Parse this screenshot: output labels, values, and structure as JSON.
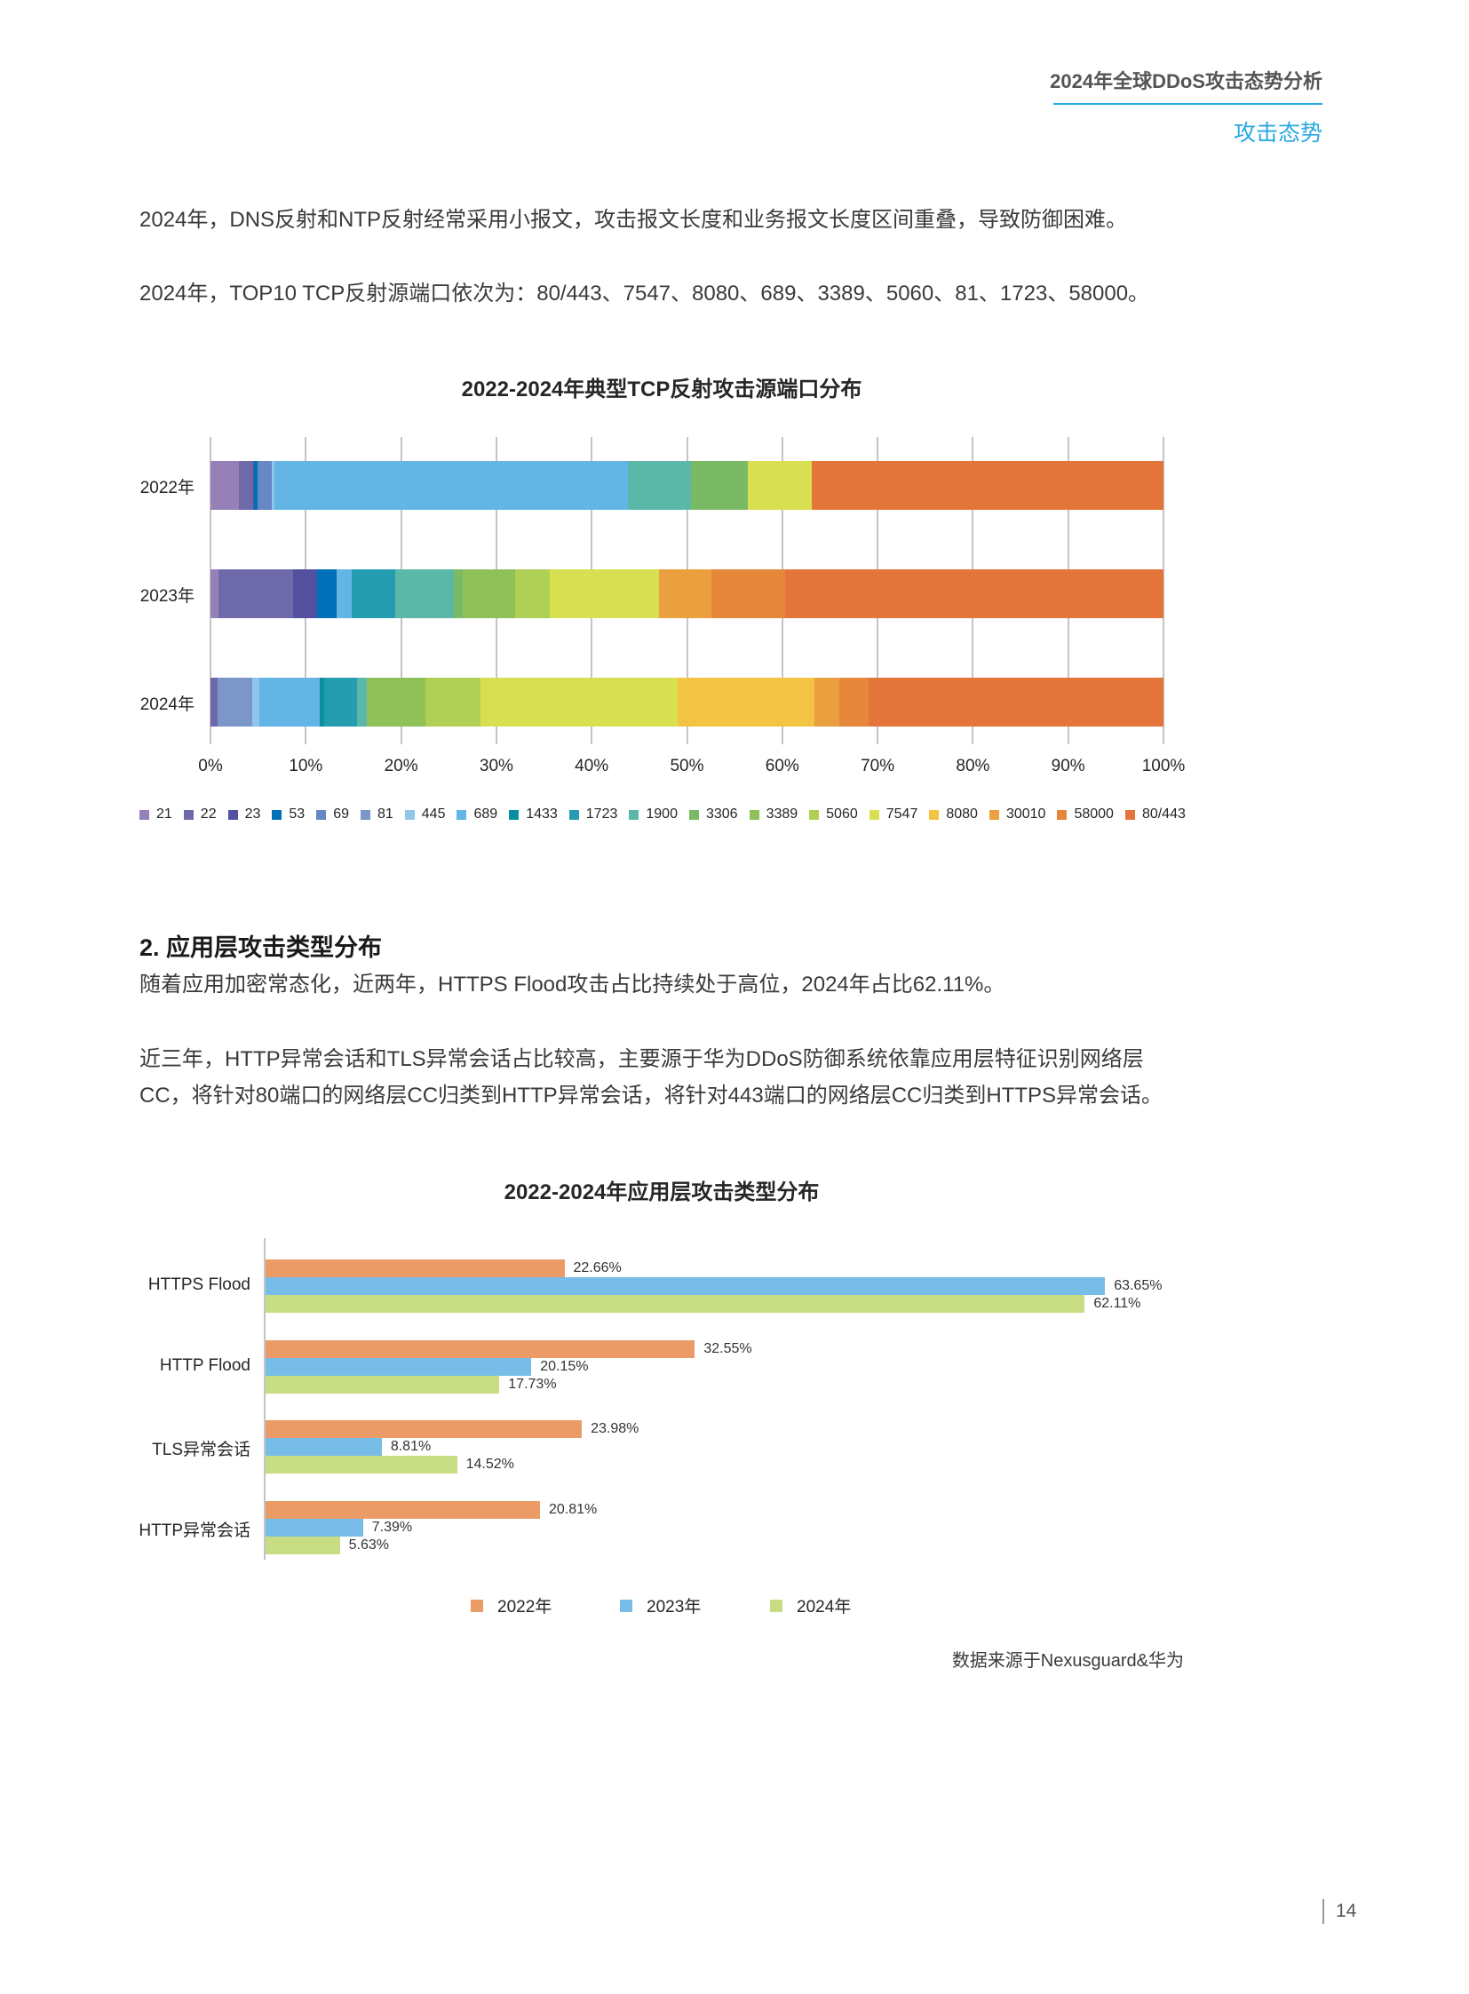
{
  "header": {
    "doc_title": "2024年全球DDoS攻击态势分析",
    "section": "攻击态势"
  },
  "intro": {
    "p1": "2024年，DNS反射和NTP反射经常采用小报文，攻击报文长度和业务报文长度区间重叠，导致防御困难。",
    "p2": "2024年，TOP10 TCP反射源端口依次为：80/443、7547、8080、689、3389、5060、81、1723、58000。"
  },
  "section2": {
    "heading": "2. 应用层攻击类型分布",
    "p1": "随着应用加密常态化，近两年，HTTPS Flood攻击占比持续处于高位，2024年占比62.11%。",
    "p2": "近三年，HTTP异常会话和TLS异常会话占比较高，主要源于华为DDoS防御系统依靠应用层特征识别网络层CC，将针对80端口的网络层CC归类到HTTP异常会话，将针对443端口的网络层CC归类到HTTPS异常会话。"
  },
  "source": "数据来源于Nexusguard&华为",
  "page_number": "14",
  "chart_data": [
    {
      "type": "bar",
      "orientation": "horizontal",
      "stacked": "percent",
      "title": "2022-2024年典型TCP反射攻击源端口分布",
      "categories": [
        "2022年",
        "2023年",
        "2024年"
      ],
      "xticks": [
        "0%",
        "10%",
        "20%",
        "30%",
        "40%",
        "50%",
        "60%",
        "70%",
        "80%",
        "90%",
        "100%"
      ],
      "xlim": [
        0,
        100
      ],
      "grid": true,
      "legend_position": "bottom",
      "series": [
        {
          "name": "21",
          "color": "#9580b8",
          "values": [
            3.0,
            0.8,
            0.0
          ]
        },
        {
          "name": "22",
          "color": "#6e6aaa",
          "values": [
            1.5,
            7.9,
            0.7
          ]
        },
        {
          "name": "23",
          "color": "#5350a0",
          "values": [
            0.1,
            2.5,
            0.0
          ]
        },
        {
          "name": "53",
          "color": "#0070b8",
          "values": [
            0.3,
            2.0,
            0.0
          ]
        },
        {
          "name": "69",
          "color": "#6688c4",
          "values": [
            1.5,
            0.0,
            0.0
          ]
        },
        {
          "name": "81",
          "color": "#7b96c8",
          "values": [
            0.0,
            0.0,
            3.7
          ]
        },
        {
          "name": "445",
          "color": "#8fc6ea",
          "values": [
            0.3,
            0.0,
            0.7
          ]
        },
        {
          "name": "689",
          "color": "#62b5e5",
          "values": [
            37.1,
            1.6,
            6.4
          ]
        },
        {
          "name": "1433",
          "color": "#0a8fa0",
          "values": [
            0.0,
            0.0,
            0.4
          ]
        },
        {
          "name": "1723",
          "color": "#259db0",
          "values": [
            0.0,
            4.6,
            3.5
          ]
        },
        {
          "name": "1900",
          "color": "#5bb8a8",
          "values": [
            6.6,
            6.1,
            1.0
          ]
        },
        {
          "name": "3306",
          "color": "#7aba65",
          "values": [
            6.0,
            1.0,
            0.0
          ]
        },
        {
          "name": "3389",
          "color": "#8fc158",
          "values": [
            0.0,
            5.5,
            6.2
          ]
        },
        {
          "name": "5060",
          "color": "#b0cf55",
          "values": [
            0.0,
            3.6,
            5.7
          ]
        },
        {
          "name": "7547",
          "color": "#d8e052",
          "values": [
            6.7,
            11.5,
            20.7
          ]
        },
        {
          "name": "8080",
          "color": "#f3c443",
          "values": [
            0.0,
            0.0,
            14.4
          ]
        },
        {
          "name": "30010",
          "color": "#eba040",
          "values": [
            0.0,
            5.5,
            2.6
          ]
        },
        {
          "name": "58000",
          "color": "#e5883b",
          "values": [
            0.0,
            7.7,
            3.1
          ]
        },
        {
          "name": "80/443",
          "color": "#e3753a",
          "values": [
            36.9,
            39.7,
            30.9
          ]
        }
      ]
    },
    {
      "type": "bar",
      "orientation": "horizontal",
      "title": "2022-2024年应用层攻击类型分布",
      "categories": [
        "HTTPS Flood",
        "HTTP Flood",
        "TLS异常会话",
        "HTTP异常会话"
      ],
      "value_suffix": "%",
      "grid": false,
      "legend_position": "bottom",
      "series": [
        {
          "name": "2022年",
          "color": "#eb9b66",
          "values": [
            22.66,
            32.55,
            23.98,
            20.81
          ]
        },
        {
          "name": "2023年",
          "color": "#77bde8",
          "values": [
            63.65,
            20.15,
            8.81,
            7.39
          ]
        },
        {
          "name": "2024年",
          "color": "#c8dc83",
          "values": [
            62.11,
            17.73,
            14.52,
            5.63
          ]
        }
      ]
    }
  ]
}
